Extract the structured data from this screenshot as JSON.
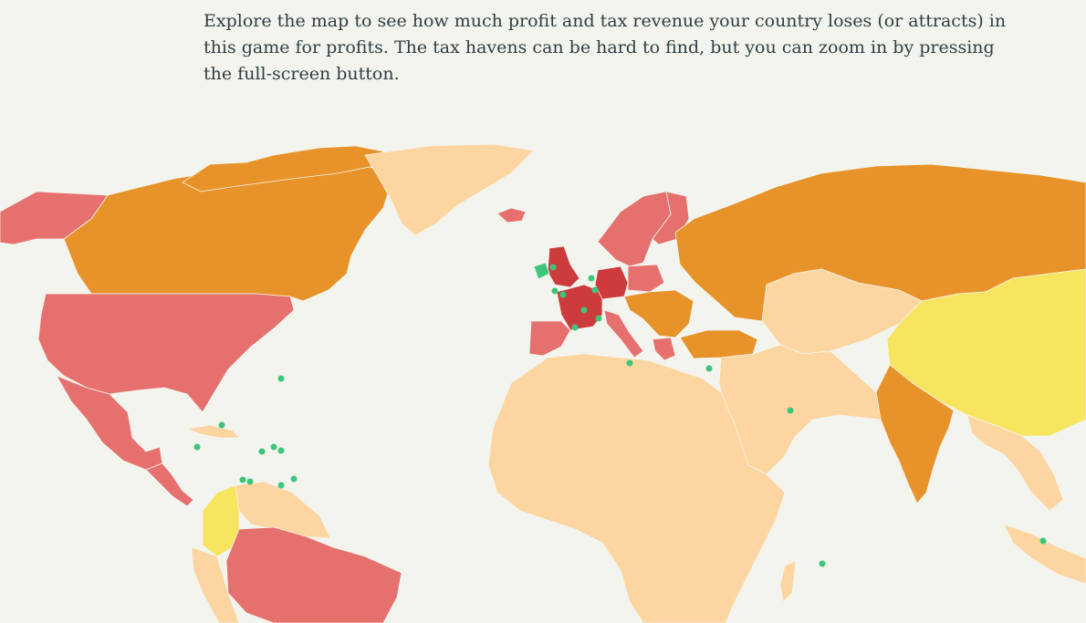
{
  "intro": {
    "text": "Explore the map to see how much profit and tax revenue your country loses (or attracts) in this game for profits. The tax havens can be hard to find, but you can zoom in by pressing the full-screen button."
  },
  "map": {
    "colors": {
      "background": "#f4f4ee",
      "tax_haven": "#3cc67b",
      "very_high_loss": "#cc3c3c",
      "high_loss": "#e6706e",
      "medium_loss": "#e8932a",
      "low_loss": "#f7e55f",
      "minor_loss": "#fdd5a0"
    }
  }
}
